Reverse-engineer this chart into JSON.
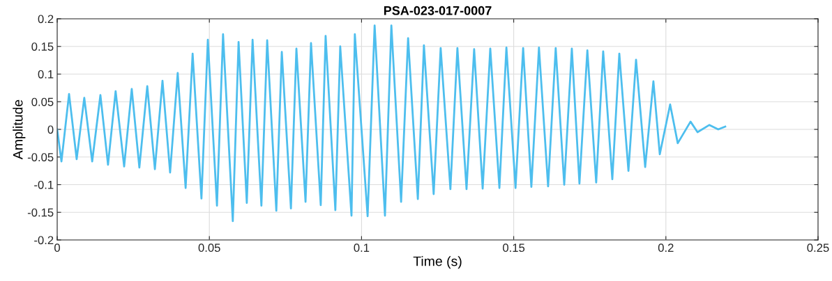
{
  "chart_data": {
    "type": "line",
    "title": "PSA-023-017-0007",
    "xlabel": "Time (s)",
    "ylabel": "Amplitude",
    "xlim": [
      0,
      0.25
    ],
    "xticks": [
      0,
      0.05,
      0.1,
      0.15,
      0.2,
      0.25
    ],
    "ylim": [
      -0.2,
      0.2
    ],
    "yticks": [
      -0.2,
      -0.15,
      -0.1,
      -0.05,
      0,
      0.05,
      0.1,
      0.15,
      0.2
    ],
    "grid": true,
    "line_style": "solid",
    "series": [
      {
        "color": "#4dbeee",
        "x": [
          0,
          0.0014,
          0.0039,
          0.0064,
          0.0089,
          0.0115,
          0.0142,
          0.0167,
          0.0192,
          0.022,
          0.0245,
          0.027,
          0.0296,
          0.0321,
          0.0346,
          0.0371,
          0.0396,
          0.0422,
          0.0445,
          0.0474,
          0.0495,
          0.0525,
          0.0545,
          0.0577,
          0.0596,
          0.0623,
          0.0642,
          0.0671,
          0.069,
          0.072,
          0.0738,
          0.0768,
          0.0786,
          0.0816,
          0.0834,
          0.0866,
          0.0882,
          0.0914,
          0.093,
          0.0967,
          0.0978,
          0.102,
          0.1043,
          0.1077,
          0.1098,
          0.113,
          0.1153,
          0.1185,
          0.1205,
          0.1237,
          0.126,
          0.1292,
          0.1315,
          0.1345,
          0.137,
          0.1398,
          0.1423,
          0.1453,
          0.1476,
          0.1506,
          0.1531,
          0.1558,
          0.1583,
          0.1613,
          0.1638,
          0.1666,
          0.1691,
          0.1716,
          0.1742,
          0.1771,
          0.1794,
          0.1824,
          0.1847,
          0.1877,
          0.1902,
          0.1932,
          0.1959,
          0.198,
          0.2014,
          0.2039,
          0.2081,
          0.2104,
          0.2143,
          0.2172,
          0.2195
        ],
        "values": [
          0,
          -0.058,
          0.064,
          -0.054,
          0.057,
          -0.058,
          0.062,
          -0.064,
          0.069,
          -0.067,
          0.073,
          -0.069,
          0.078,
          -0.072,
          0.088,
          -0.078,
          0.102,
          -0.106,
          0.137,
          -0.125,
          0.162,
          -0.138,
          0.172,
          -0.166,
          0.158,
          -0.133,
          0.162,
          -0.138,
          0.161,
          -0.147,
          0.14,
          -0.143,
          0.146,
          -0.131,
          0.156,
          -0.137,
          0.169,
          -0.146,
          0.15,
          -0.156,
          0.172,
          -0.157,
          0.188,
          -0.156,
          0.188,
          -0.131,
          0.165,
          -0.126,
          0.152,
          -0.117,
          0.147,
          -0.108,
          0.147,
          -0.108,
          0.145,
          -0.107,
          0.146,
          -0.106,
          0.148,
          -0.106,
          0.147,
          -0.104,
          0.148,
          -0.103,
          0.147,
          -0.1,
          0.146,
          -0.098,
          0.143,
          -0.096,
          0.141,
          -0.09,
          0.137,
          -0.075,
          0.126,
          -0.068,
          0.087,
          -0.045,
          0.045,
          -0.025,
          0.014,
          -0.005,
          0.008,
          0.0,
          0.005
        ]
      }
    ]
  }
}
